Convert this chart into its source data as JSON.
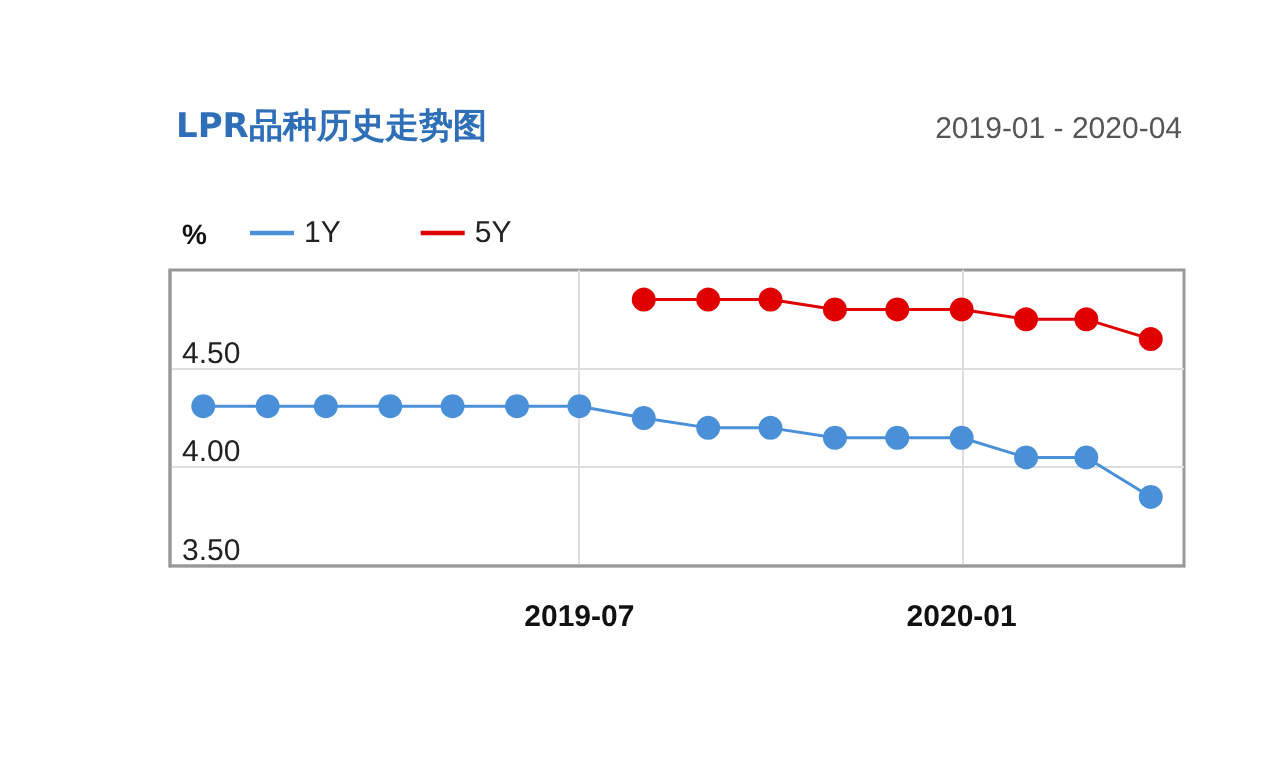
{
  "chart_data": {
    "type": "line",
    "title": "LPR品种历史走势图",
    "subtitle": "2019-01 - 2020-04",
    "ylabel": "%",
    "x": [
      "2019-01",
      "2019-02",
      "2019-03",
      "2019-04",
      "2019-05",
      "2019-06",
      "2019-07",
      "2019-08",
      "2019-09",
      "2019-10",
      "2019-11",
      "2019-12",
      "2020-01",
      "2020-02",
      "2020-03",
      "2020-04"
    ],
    "series": [
      {
        "name": "1Y",
        "color": "#4a90d9",
        "values": [
          4.31,
          4.31,
          4.31,
          4.31,
          4.31,
          4.31,
          4.31,
          4.25,
          4.2,
          4.2,
          4.15,
          4.15,
          4.15,
          4.05,
          4.05,
          3.85
        ]
      },
      {
        "name": "5Y",
        "color": "#e00000",
        "values": [
          null,
          null,
          null,
          null,
          null,
          null,
          null,
          4.85,
          4.85,
          4.85,
          4.8,
          4.8,
          4.8,
          4.75,
          4.75,
          4.65
        ]
      }
    ],
    "xlim": [
      "2018-12-16",
      "2020-04-17"
    ],
    "xticks": [
      "2019-07",
      "2020-01"
    ],
    "ylim": [
      3.5,
      5.0
    ],
    "yticks": [
      {
        "value": 3.5,
        "label": "3.50"
      },
      {
        "value": 4.0,
        "label": "4.00"
      },
      {
        "value": 4.5,
        "label": "4.50"
      }
    ],
    "grid": true,
    "legend": "top left",
    "marker": "circle",
    "line_style": "solid"
  }
}
